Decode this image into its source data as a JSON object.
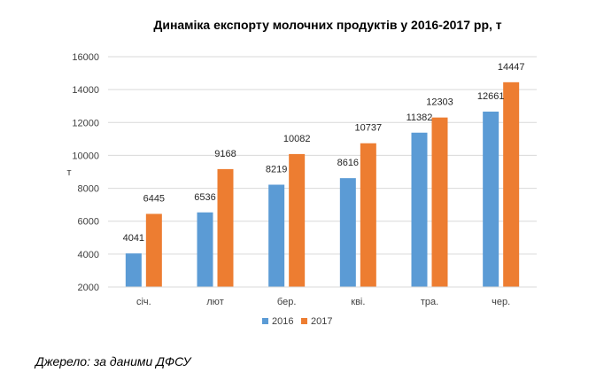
{
  "chart_data": {
    "type": "bar",
    "title": "Динаміка експорту молочних продуктів у 2016-2017 рр, т",
    "ylabel": "т",
    "xlabel": "",
    "ylim": [
      2000,
      16000
    ],
    "yticks": [
      2000,
      4000,
      6000,
      8000,
      10000,
      12000,
      14000,
      16000
    ],
    "grid": true,
    "legend_position": "bottom",
    "categories": [
      "січ.",
      "лют",
      "бер.",
      "кві.",
      "тра.",
      "чер."
    ],
    "series": [
      {
        "name": "2016",
        "color": "#5B9BD5",
        "values": [
          4041,
          6536,
          8219,
          8616,
          11382,
          12661
        ]
      },
      {
        "name": "2017",
        "color": "#ED7D31",
        "values": [
          6445,
          9168,
          10082,
          10737,
          12303,
          14447
        ]
      }
    ]
  },
  "source_note": "Джерело: за даними ДФСУ"
}
